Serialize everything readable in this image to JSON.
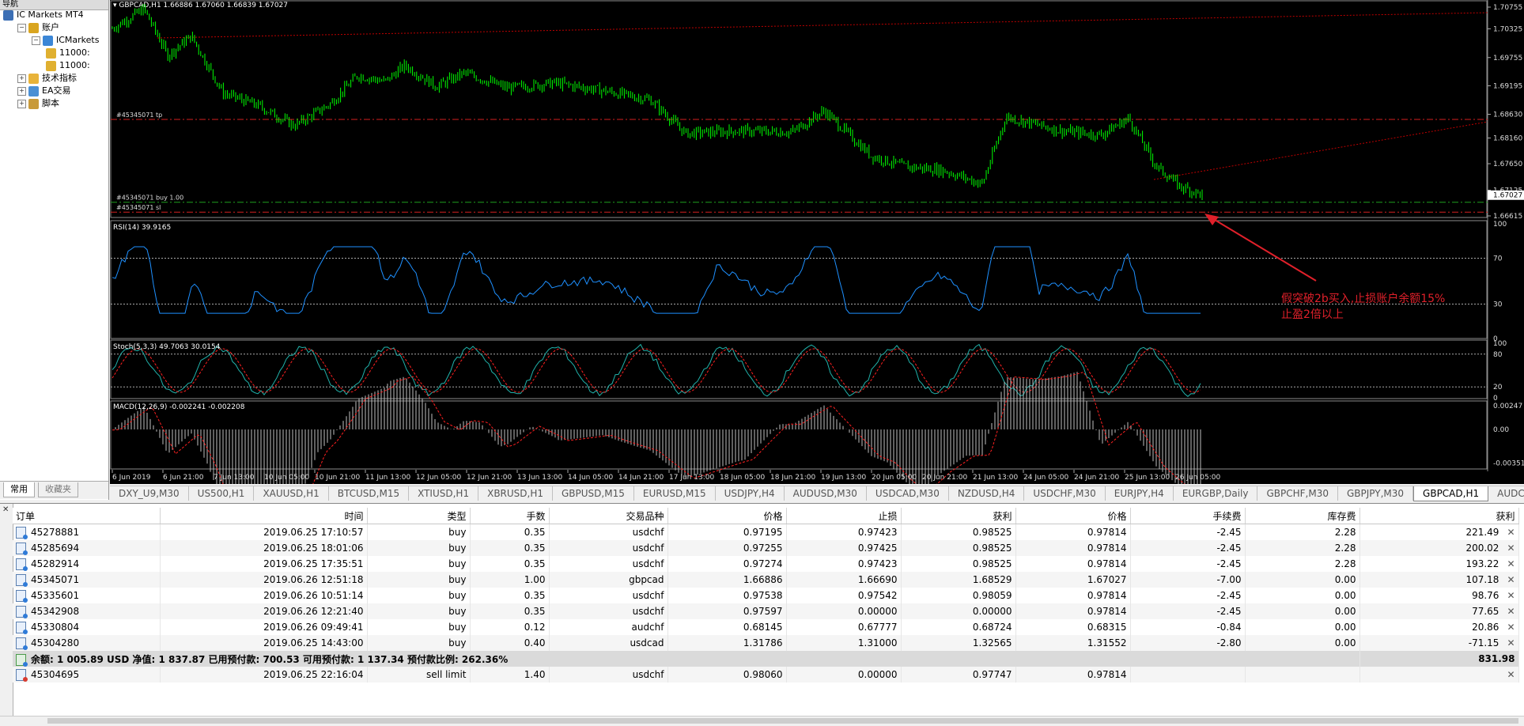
{
  "navigator": {
    "title": "导航",
    "items": [
      {
        "label": "IC Markets MT4",
        "icon": "terminal-icon",
        "level": 0,
        "expander": ""
      },
      {
        "label": "账户",
        "icon": "accounts-icon",
        "level": 1,
        "expander": "−"
      },
      {
        "label": "ICMarkets",
        "icon": "server-icon",
        "level": 2,
        "expander": "−"
      },
      {
        "label": "11000:",
        "icon": "account-icon",
        "level": 3,
        "expander": ""
      },
      {
        "label": "11000:",
        "icon": "account-icon",
        "level": 3,
        "expander": ""
      },
      {
        "label": "技术指标",
        "icon": "indicators-icon",
        "level": 1,
        "expander": "+"
      },
      {
        "label": "EA交易",
        "icon": "expert-advisors-icon",
        "level": 1,
        "expander": "+"
      },
      {
        "label": "脚本",
        "icon": "scripts-icon",
        "level": 1,
        "expander": "+"
      }
    ],
    "tabs": [
      "常用",
      "收藏夹"
    ]
  },
  "chart": {
    "header": "GBPCAD,H1  1.66886 1.67060 1.66839 1.67027",
    "price_labels": [
      "1.70755",
      "1.70325",
      "1.69755",
      "1.69195",
      "1.68630",
      "1.68160",
      "1.67650",
      "1.67125",
      "1.66615"
    ],
    "current_price": "1.67027",
    "order_lines": [
      {
        "label": "#45345071 tp",
        "price": 1.68529,
        "color": "#d42020"
      },
      {
        "label": "#45345071 buy 1.00",
        "price": 1.66886,
        "color": "#1fa01f"
      },
      {
        "label": "#45345071 sl",
        "price": 1.6669,
        "color": "#d42020"
      }
    ],
    "annotation": [
      "假突破2b买入,止损账户余额15%",
      "止盈2倍以上"
    ],
    "annotation_color": "#e0202a",
    "rsi_label": "RSI(14) 39.9165",
    "rsi_levels": [
      "100",
      "70",
      "30",
      "0"
    ],
    "stoch_label": "Stoch(5,3,3) 49.7063 30.0154",
    "stoch_levels": [
      "100",
      "80",
      "20",
      "0"
    ],
    "macd_label": "MACD(12,26,9) -0.002241 -0.002208",
    "macd_levels": [
      "0.00247",
      "0.00",
      "-0.00351"
    ],
    "time_labels": [
      "6 Jun 2019",
      "6 Jun 21:00",
      "7 Jun 13:00",
      "10 Jun 05:00",
      "10 Jun 21:00",
      "11 Jun 13:00",
      "12 Jun 05:00",
      "12 Jun 21:00",
      "13 Jun 13:00",
      "14 Jun 05:00",
      "14 Jun 21:00",
      "17 Jun 13:00",
      "18 Jun 05:00",
      "18 Jun 21:00",
      "19 Jun 13:00",
      "20 Jun 05:00",
      "20 Jun 21:00",
      "21 Jun 13:00",
      "24 Jun 05:00",
      "24 Jun 21:00",
      "25 Jun 13:00",
      "26 Jun 05:00"
    ],
    "colors": {
      "bull": "#00ff00",
      "rsi": "#1e90ff",
      "stoch_main": "#20b2aa",
      "stoch_signal": "#ff2020",
      "macd_hist": "#c0c0c0",
      "macd_signal": "#ff2020",
      "trend": "#c00000"
    }
  },
  "symbol_tabs": [
    "DXY_U9,M30",
    "US500,H1",
    "XAUUSD,H1",
    "BTCUSD,M15",
    "XTIUSD,H1",
    "XBRUSD,H1",
    "GBPUSD,M15",
    "EURUSD,M15",
    "USDJPY,H4",
    "AUDUSD,M30",
    "USDCAD,M30",
    "NZDUSD,H4",
    "USDCHF,M30",
    "EURJPY,H4",
    "EURGBP,Daily",
    "GBPCHF,M30",
    "GBPJPY,M30",
    "GBPCAD,H1",
    "AUDC"
  ],
  "active_symbol_tab": 17,
  "terminal": {
    "columns": [
      "订单",
      "时间",
      "类型",
      "手数",
      "交易品种",
      "价格",
      "止损",
      "获利",
      "价格",
      "手续费",
      "库存费",
      "获利"
    ],
    "orders": [
      {
        "id": "45278881",
        "time": "2019.06.25 17:10:57",
        "type": "buy",
        "lots": "0.35",
        "symbol": "usdchf",
        "price": "0.97195",
        "sl": "0.97423",
        "tp": "0.98525",
        "cur": "0.97814",
        "comm": "-2.45",
        "swap": "2.28",
        "profit": "221.49"
      },
      {
        "id": "45285694",
        "time": "2019.06.25 18:01:06",
        "type": "buy",
        "lots": "0.35",
        "symbol": "usdchf",
        "price": "0.97255",
        "sl": "0.97425",
        "tp": "0.98525",
        "cur": "0.97814",
        "comm": "-2.45",
        "swap": "2.28",
        "profit": "200.02"
      },
      {
        "id": "45282914",
        "time": "2019.06.25 17:35:51",
        "type": "buy",
        "lots": "0.35",
        "symbol": "usdchf",
        "price": "0.97274",
        "sl": "0.97423",
        "tp": "0.98525",
        "cur": "0.97814",
        "comm": "-2.45",
        "swap": "2.28",
        "profit": "193.22"
      },
      {
        "id": "45345071",
        "time": "2019.06.26 12:51:18",
        "type": "buy",
        "lots": "1.00",
        "symbol": "gbpcad",
        "price": "1.66886",
        "sl": "1.66690",
        "tp": "1.68529",
        "cur": "1.67027",
        "comm": "-7.00",
        "swap": "0.00",
        "profit": "107.18"
      },
      {
        "id": "45335601",
        "time": "2019.06.26 10:51:14",
        "type": "buy",
        "lots": "0.35",
        "symbol": "usdchf",
        "price": "0.97538",
        "sl": "0.97542",
        "tp": "0.98059",
        "cur": "0.97814",
        "comm": "-2.45",
        "swap": "0.00",
        "profit": "98.76"
      },
      {
        "id": "45342908",
        "time": "2019.06.26 12:21:40",
        "type": "buy",
        "lots": "0.35",
        "symbol": "usdchf",
        "price": "0.97597",
        "sl": "0.00000",
        "tp": "0.00000",
        "cur": "0.97814",
        "comm": "-2.45",
        "swap": "0.00",
        "profit": "77.65"
      },
      {
        "id": "45330804",
        "time": "2019.06.26 09:49:41",
        "type": "buy",
        "lots": "0.12",
        "symbol": "audchf",
        "price": "0.68145",
        "sl": "0.67777",
        "tp": "0.68724",
        "cur": "0.68315",
        "comm": "-0.84",
        "swap": "0.00",
        "profit": "20.86"
      },
      {
        "id": "45304280",
        "time": "2019.06.25 14:43:00",
        "type": "buy",
        "lots": "0.40",
        "symbol": "usdcad",
        "price": "1.31786",
        "sl": "1.31000",
        "tp": "1.32565",
        "cur": "1.31552",
        "comm": "-2.80",
        "swap": "0.00",
        "profit": "-71.15"
      }
    ],
    "summary": {
      "text": "余额: 1 005.89 USD  净值: 1 837.87  已用预付款: 700.53  可用预付款: 1 137.34  预付款比例: 262.36%",
      "profit": "831.98"
    },
    "pending": {
      "id": "45304695",
      "time": "2019.06.25 22:16:04",
      "type": "sell limit",
      "lots": "1.40",
      "symbol": "usdchf",
      "price": "0.98060",
      "sl": "0.00000",
      "tp": "0.97747",
      "cur": "0.97814"
    },
    "close_symbol": "✕"
  }
}
